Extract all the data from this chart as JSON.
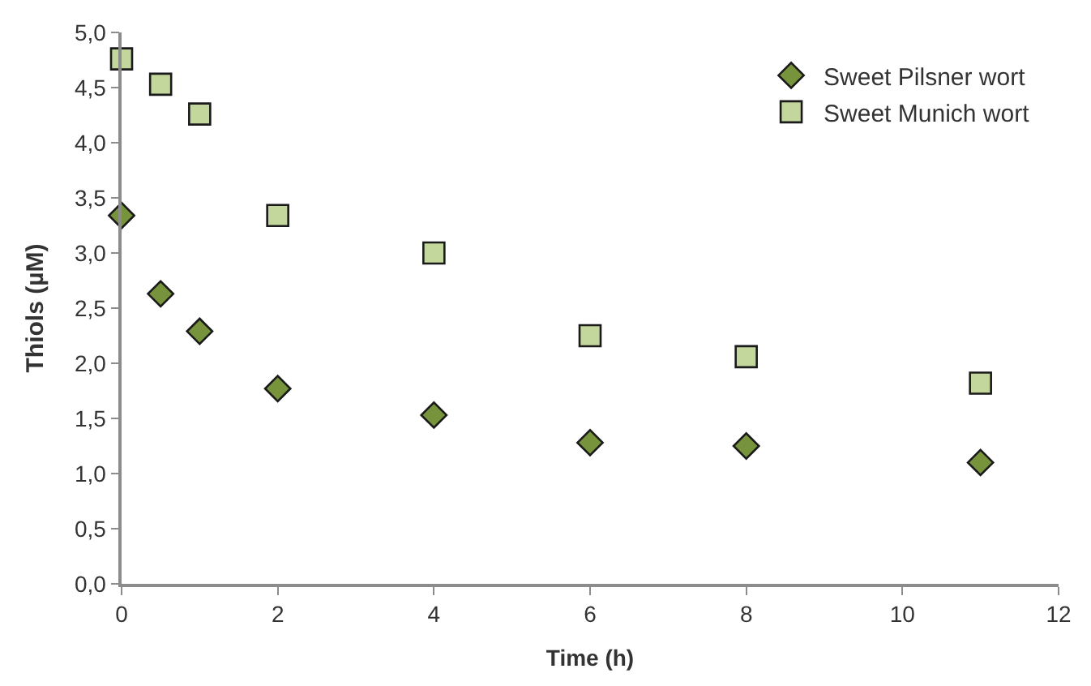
{
  "chart_data": {
    "type": "scatter",
    "xlabel": "Time (h)",
    "ylabel": "Thiols (µM)",
    "x": [
      0,
      0.5,
      1,
      2,
      4,
      6,
      8,
      11
    ],
    "series": [
      {
        "name": "Sweet Pilsner wort",
        "color": "#77933c",
        "marker": "diamond",
        "values": [
          3.34,
          2.63,
          2.29,
          1.77,
          1.53,
          1.28,
          1.25,
          1.1
        ]
      },
      {
        "name": "Sweet Munich wort",
        "color": "#c3d69b",
        "marker": "square",
        "values": [
          4.76,
          4.53,
          4.26,
          3.34,
          3.0,
          2.25,
          2.06,
          1.82
        ]
      }
    ],
    "xlim": [
      0,
      12
    ],
    "xticks": [
      0,
      2,
      4,
      6,
      8,
      10,
      12
    ],
    "ylim": [
      0,
      5
    ],
    "yticks": [
      {
        "value": 0,
        "label": "0,0"
      },
      {
        "value": 0.5,
        "label": "0,5"
      },
      {
        "value": 1,
        "label": "1,0"
      },
      {
        "value": 1.5,
        "label": "1,5"
      },
      {
        "value": 2,
        "label": "2,0"
      },
      {
        "value": 2.5,
        "label": "2,5"
      },
      {
        "value": 3,
        "label": "3,0"
      },
      {
        "value": 3.5,
        "label": "3,5"
      },
      {
        "value": 4,
        "label": "4,0"
      },
      {
        "value": 4.5,
        "label": "4,5"
      },
      {
        "value": 5,
        "label": "5,0"
      }
    ],
    "legend": "top right"
  }
}
